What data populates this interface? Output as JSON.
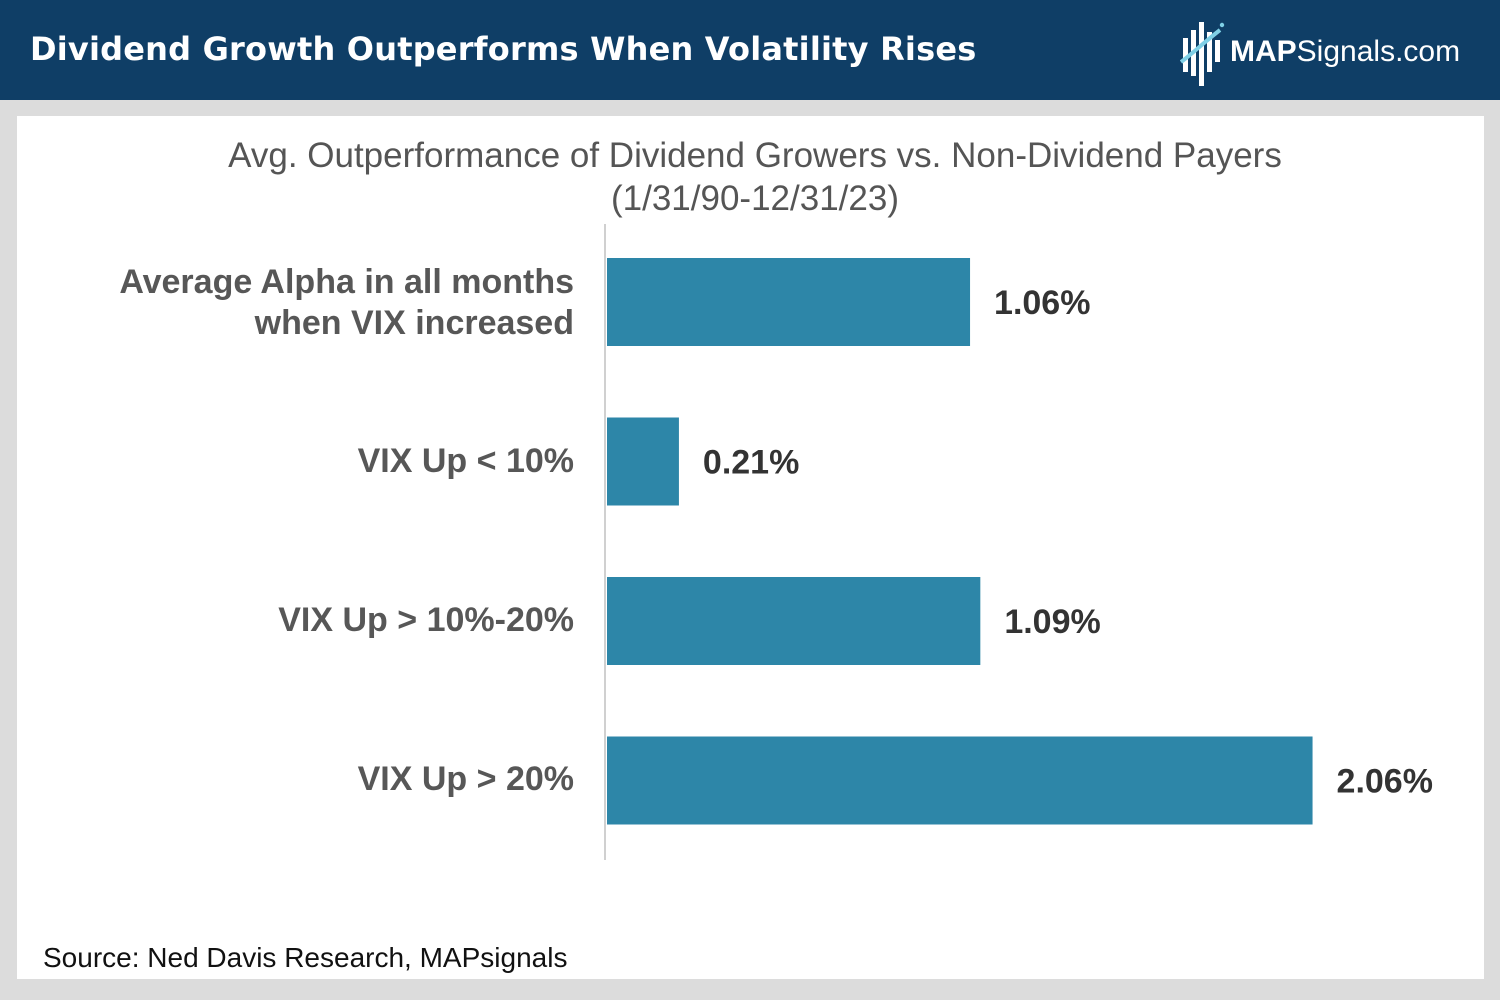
{
  "header": {
    "title": "Dividend Growth Outperforms When Volatility Rises",
    "brand_strong": "MAP",
    "brand_rest": "Signals.com",
    "logo_icon": "bar-chart-logo-icon"
  },
  "chart_data": {
    "type": "bar",
    "orientation": "horizontal",
    "title": "Avg. Outperformance of Dividend Growers vs. Non-Dividend Payers",
    "subtitle": "(1/31/90-12/31/23)",
    "categories": [
      [
        "Average Alpha in all months",
        "when VIX increased"
      ],
      [
        "VIX Up < 10%"
      ],
      [
        "VIX Up > 10%-20%"
      ],
      [
        "VIX Up > 20%"
      ]
    ],
    "values": [
      1.06,
      0.21,
      1.09,
      2.06
    ],
    "value_labels": [
      "1.06%",
      "0.21%",
      "1.09%",
      "2.06%"
    ],
    "unit": "%",
    "xlim": [
      0,
      2.2
    ],
    "xlabel": "",
    "ylabel": "",
    "grid": false,
    "legend": "none",
    "bar_color": "#2d86a8"
  },
  "source": "Source: Ned Davis Research, MAPsignals",
  "colors": {
    "header_bg": "#0f3e66",
    "page_bg": "#dcdcdc",
    "bar": "#2d86a8",
    "axis": "#d0d0d0"
  }
}
